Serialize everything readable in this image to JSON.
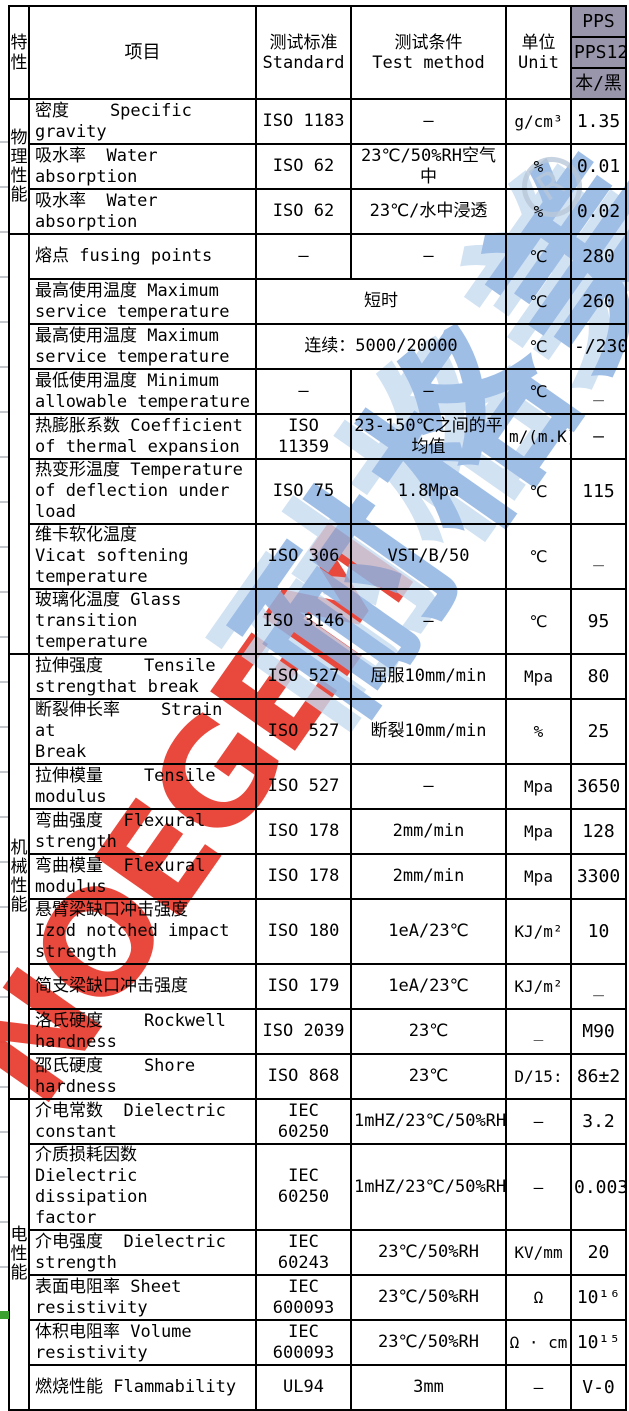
{
  "watermark": {
    "red_text": "NOEGEM",
    "blue_text": "耐格美",
    "registered_mark": "R",
    "red_color": "#e8392c",
    "blue_color": "#8fb3e2",
    "light_blue_color": "#c6daf0"
  },
  "corner_mark_color": "#3aa02f",
  "header": {
    "col_characteristic": "特\n性",
    "col_item": "项目",
    "col_standard": "测试标准\nStandard",
    "col_method": "测试条件\nTest method",
    "col_unit": "单位\nUnit",
    "product": {
      "line1": "PPS",
      "line2": "PPS12",
      "line3": "本/黑",
      "bg_color": "#9996ac"
    }
  },
  "sections": [
    {
      "name": "physical",
      "label": "物\n理\n性\n能",
      "row_indexes": [
        0,
        1,
        2
      ]
    },
    {
      "name": "thermal",
      "label": "",
      "row_indexes": [
        3,
        4,
        5,
        6,
        7,
        8,
        9,
        10
      ]
    },
    {
      "name": "mechanical",
      "label": "机\n械\n性\n能",
      "row_indexes": [
        11,
        12,
        13,
        14,
        15,
        16,
        17,
        18,
        19
      ]
    },
    {
      "name": "electrical",
      "label": "电\n性\n能",
      "row_indexes": [
        20,
        21,
        22,
        23,
        24,
        25
      ]
    }
  ],
  "rows": [
    {
      "item": "密度    Specific gravity",
      "standard": "ISO 1183",
      "method": "–",
      "unit": "g/cm³",
      "value": "1.35",
      "merged": false
    },
    {
      "item": "吸水率  Water absorption",
      "standard": "ISO 62",
      "method": "23℃/50%RH空气中",
      "unit": "%",
      "value": "0.01",
      "merged": false
    },
    {
      "item": "吸水率  Water absorption",
      "standard": "ISO 62",
      "method": "23℃/水中浸透",
      "unit": "%",
      "value": "0.02",
      "merged": false
    },
    {
      "item": "熔点 fusing points",
      "standard": "–",
      "method": "–",
      "unit": "℃",
      "value": "280",
      "merged": false
    },
    {
      "item": "最高使用温度 Maximum\nservice temperature",
      "standard": "",
      "method": "短时",
      "unit": "℃",
      "value": "260",
      "merged": true
    },
    {
      "item": "最高使用温度 Maximum\nservice temperature",
      "standard": "",
      "method": "连续：5000/20000",
      "unit": "℃",
      "value": "-/230",
      "merged": true
    },
    {
      "item": "最低使用温度 Minimum\nallowable temperature",
      "standard": "–",
      "method": "–",
      "unit": "℃",
      "value": "_",
      "merged": false
    },
    {
      "item": "热膨胀系数 Coefficient\nof thermal expansion",
      "standard": "ISO 11359",
      "method": "23-150℃之间的平\n均值",
      "unit": "m/(m.K)",
      "value": "–",
      "merged": false
    },
    {
      "item": "热变形温度 Temperature\nof deflection under load",
      "standard": "ISO 75",
      "method": "1.8Mpa",
      "unit": "℃",
      "value": "115",
      "merged": false
    },
    {
      "item": "维卡软化温度\nVicat softening\ntemperature",
      "standard": "ISO 306",
      "method": "VST/B/50",
      "unit": "℃",
      "value": "_",
      "merged": false
    },
    {
      "item": "玻璃化温度 Glass\ntransition temperature",
      "standard": "ISO 3146",
      "method": "–",
      "unit": "℃",
      "value": "95",
      "merged": false
    },
    {
      "item": "拉伸强度    Tensile\nstrengthat break",
      "standard": "ISO 527",
      "method": "屈服10mm/min",
      "unit": "Mpa",
      "value": "80",
      "merged": false
    },
    {
      "item": "断裂伸长率    Strain at\nBreak",
      "standard": "ISO 527",
      "method": "断裂10mm/min",
      "unit": "%",
      "value": "25",
      "merged": false
    },
    {
      "item": "拉伸模量    Tensile\nmodulus",
      "standard": "ISO 527",
      "method": "–",
      "unit": "Mpa",
      "value": "3650",
      "merged": false
    },
    {
      "item": "弯曲强度  Flexural\nstrength",
      "standard": "ISO 178",
      "method": "2mm/min",
      "unit": "Mpa",
      "value": "128",
      "merged": false
    },
    {
      "item": "弯曲模量  Flexural\nmodulus",
      "standard": "ISO 178",
      "method": "2mm/min",
      "unit": "Mpa",
      "value": "3300",
      "merged": false
    },
    {
      "item": "悬臂梁缺口冲击强度\nIzod notched impact\nstrength",
      "standard": "ISO 180",
      "method": "1eA/23℃",
      "unit": "KJ/m²",
      "value": "10",
      "merged": false
    },
    {
      "item": "简支梁缺口冲击强度",
      "standard": "ISO 179",
      "method": "1eA/23℃",
      "unit": "KJ/m²",
      "value": "_",
      "merged": false
    },
    {
      "item": "洛氏硬度    Rockwell\nhardness",
      "standard": "ISO 2039",
      "method": "23℃",
      "unit": "_",
      "value": "M90",
      "merged": false
    },
    {
      "item": "邵氏硬度    Shore\nhardness",
      "standard": "ISO 868",
      "method": "23℃",
      "unit": "D/15:",
      "value": "86±2",
      "merged": false
    },
    {
      "item": "介电常数  Dielectric\nconstant",
      "standard": "IEC 60250",
      "method": "1mHZ/23℃/50%RH",
      "unit": "–",
      "value": "3.2",
      "merged": false
    },
    {
      "item": "介质损耗因数\nDielectric dissipation\nfactor",
      "standard": "IEC 60250",
      "method": "1mHZ/23℃/50%RH",
      "unit": "–",
      "value": "0.003",
      "merged": false
    },
    {
      "item": "介电强度  Dielectric\nstrength",
      "standard": "IEC 60243",
      "method": "23℃/50%RH",
      "unit": "KV/mm",
      "value": "20",
      "merged": false
    },
    {
      "item": "表面电阻率 Sheet\nresistivity",
      "standard": "IEC\n600093",
      "method": "23℃/50%RH",
      "unit": "Ω",
      "value": "10¹⁶",
      "merged": false
    },
    {
      "item": "体积电阻率 Volume\nresistivity",
      "standard": "IEC\n600093",
      "method": "23℃/50%RH",
      "unit": "Ω · cm",
      "value": "10¹⁵",
      "merged": false
    },
    {
      "item": "燃烧性能 Flammability",
      "standard": "UL94",
      "method": "3mm",
      "unit": "–",
      "value": "V-0",
      "merged": false
    }
  ]
}
